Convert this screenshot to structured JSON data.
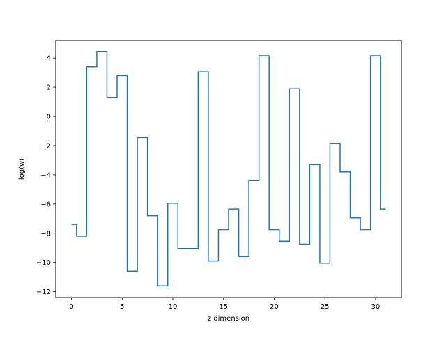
{
  "chart_data": {
    "type": "line",
    "drawstyle": "steps-mid",
    "xlabel": "z dimension",
    "ylabel": "log(w)",
    "xlim": [
      -1.55,
      32.55
    ],
    "ylim": [
      -12.4,
      5.2
    ],
    "xticks": [
      0,
      5,
      10,
      15,
      20,
      25,
      30
    ],
    "yticks": [
      -12,
      -10,
      -8,
      -6,
      -4,
      -2,
      0,
      2,
      4
    ],
    "grid": false,
    "line_color": "#1f77b4",
    "series": [
      {
        "x": [
          0,
          1,
          2,
          3,
          4,
          5,
          6,
          7,
          8,
          9,
          10,
          11,
          12,
          13,
          14,
          15,
          16,
          17,
          18,
          19,
          20,
          21,
          22,
          23,
          24,
          25,
          26,
          27,
          28,
          29,
          30,
          31
        ],
        "values": [
          -7.4,
          -8.2,
          3.4,
          4.45,
          1.3,
          2.8,
          -10.6,
          -1.45,
          -6.8,
          -11.6,
          -5.95,
          -9.05,
          -9.05,
          3.05,
          -9.9,
          -7.75,
          -6.35,
          -9.6,
          -4.4,
          4.15,
          -7.75,
          -8.55,
          1.9,
          -8.75,
          -3.3,
          -10.05,
          -1.85,
          -3.8,
          -6.95,
          -7.75,
          4.15,
          -6.35
        ]
      }
    ]
  }
}
